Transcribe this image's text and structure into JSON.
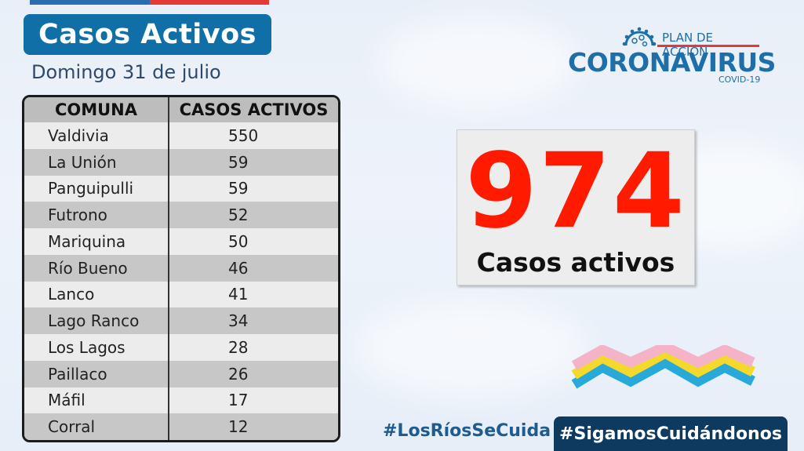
{
  "header": {
    "title": "Casos Activos",
    "date": "Domingo 31 de julio"
  },
  "logo": {
    "plan": "PLAN DE ACCIÓN",
    "name": "CORONAVIRUS",
    "sub": "COVID-19"
  },
  "table": {
    "headers": [
      "COMUNA",
      "CASOS ACTIVOS"
    ],
    "rows": [
      {
        "comuna": "Valdivia",
        "casos": "550"
      },
      {
        "comuna": "La Unión",
        "casos": "59"
      },
      {
        "comuna": "Panguipulli",
        "casos": "59"
      },
      {
        "comuna": "Futrono",
        "casos": "52"
      },
      {
        "comuna": "Mariquina",
        "casos": "50"
      },
      {
        "comuna": "Río Bueno",
        "casos": "46"
      },
      {
        "comuna": "Lanco",
        "casos": "41"
      },
      {
        "comuna": "Lago Ranco",
        "casos": "34"
      },
      {
        "comuna": "Los Lagos",
        "casos": "28"
      },
      {
        "comuna": "Paillaco",
        "casos": "26"
      },
      {
        "comuna": "Máfil",
        "casos": "17"
      },
      {
        "comuna": "Corral",
        "casos": "12"
      }
    ]
  },
  "total": {
    "value": "974",
    "label": "Casos activos"
  },
  "footer": {
    "hashtag_left": "#LosRíosSeCuida",
    "hashtag_right": "#SigamosCuidándonos"
  },
  "colors": {
    "accent": "#0f6fa6",
    "number": "#ff1a00",
    "footer_box": "#0e3a5f"
  }
}
